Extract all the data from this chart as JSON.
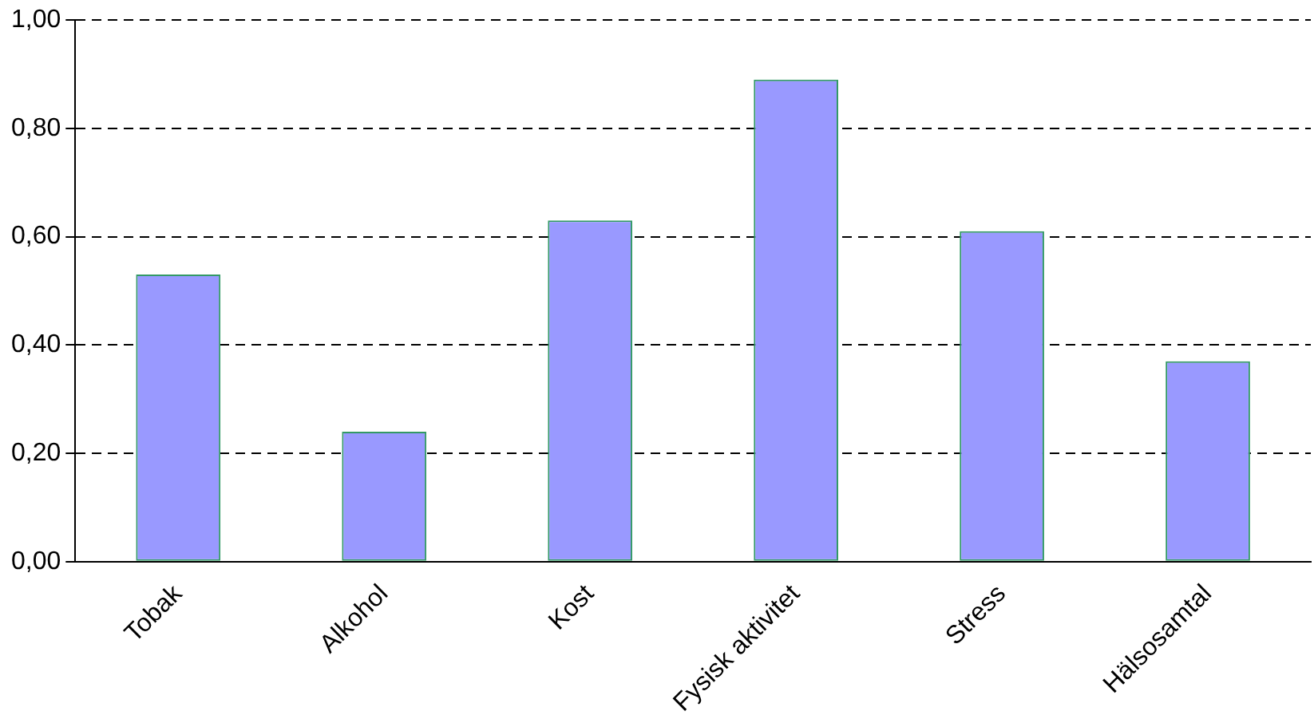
{
  "chart_data": {
    "type": "bar",
    "categories": [
      "Tobak",
      "Alkohol",
      "Kost",
      "Fysisk aktivitet",
      "Stress",
      "Hälsosamtal"
    ],
    "values": [
      0.53,
      0.24,
      0.63,
      0.89,
      0.61,
      0.37
    ],
    "color": "#9999ff",
    "ylim": [
      0,
      1
    ],
    "yticks": [
      {
        "value": 0,
        "label": "0,00"
      },
      {
        "value": 0.2,
        "label": "0,20"
      },
      {
        "value": 0.4,
        "label": "0,40"
      },
      {
        "value": 0.6,
        "label": "0,60"
      },
      {
        "value": 0.8,
        "label": "0,80"
      },
      {
        "value": 1,
        "label": "1,00"
      }
    ],
    "grid": "y",
    "legend": false
  }
}
